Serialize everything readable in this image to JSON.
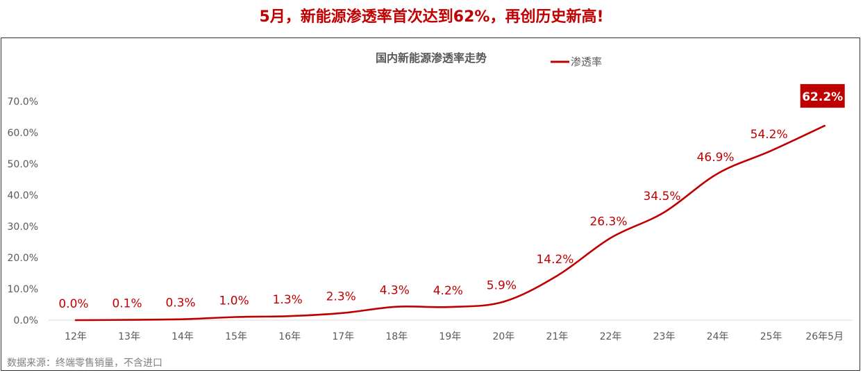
{
  "headline": "5月，新能源渗透率首次达到62%，再创历史新高!",
  "source_note": "数据来源：终端零售销量，不含进口",
  "colors": {
    "accent": "#c00000",
    "axis_text": "#595959",
    "title_text": "#595959"
  },
  "chart_data": {
    "type": "line",
    "title": "国内新能源渗透率走势",
    "legend": "top-center",
    "categories": [
      "12年",
      "13年",
      "14年",
      "15年",
      "16年",
      "17年",
      "18年",
      "19年",
      "20年",
      "21年",
      "22年",
      "23年",
      "24年",
      "25年",
      "26年5月"
    ],
    "series": [
      {
        "name": "渗透率",
        "values": [
          0.0,
          0.1,
          0.3,
          1.0,
          1.3,
          2.3,
          4.3,
          4.2,
          5.9,
          14.2,
          26.3,
          34.5,
          46.9,
          54.2,
          62.2
        ],
        "labels": [
          "0.0%",
          "0.1%",
          "0.3%",
          "1.0%",
          "1.3%",
          "2.3%",
          "4.3%",
          "4.2%",
          "5.9%",
          "14.2%",
          "26.3%",
          "34.5%",
          "46.9%",
          "54.2%",
          "62.2%"
        ]
      }
    ],
    "yticks": [
      "0.0%",
      "10.0%",
      "20.0%",
      "30.0%",
      "40.0%",
      "50.0%",
      "60.0%",
      "70.0%"
    ],
    "ylim": [
      0,
      70
    ],
    "grid": false,
    "highlight_last": true
  }
}
